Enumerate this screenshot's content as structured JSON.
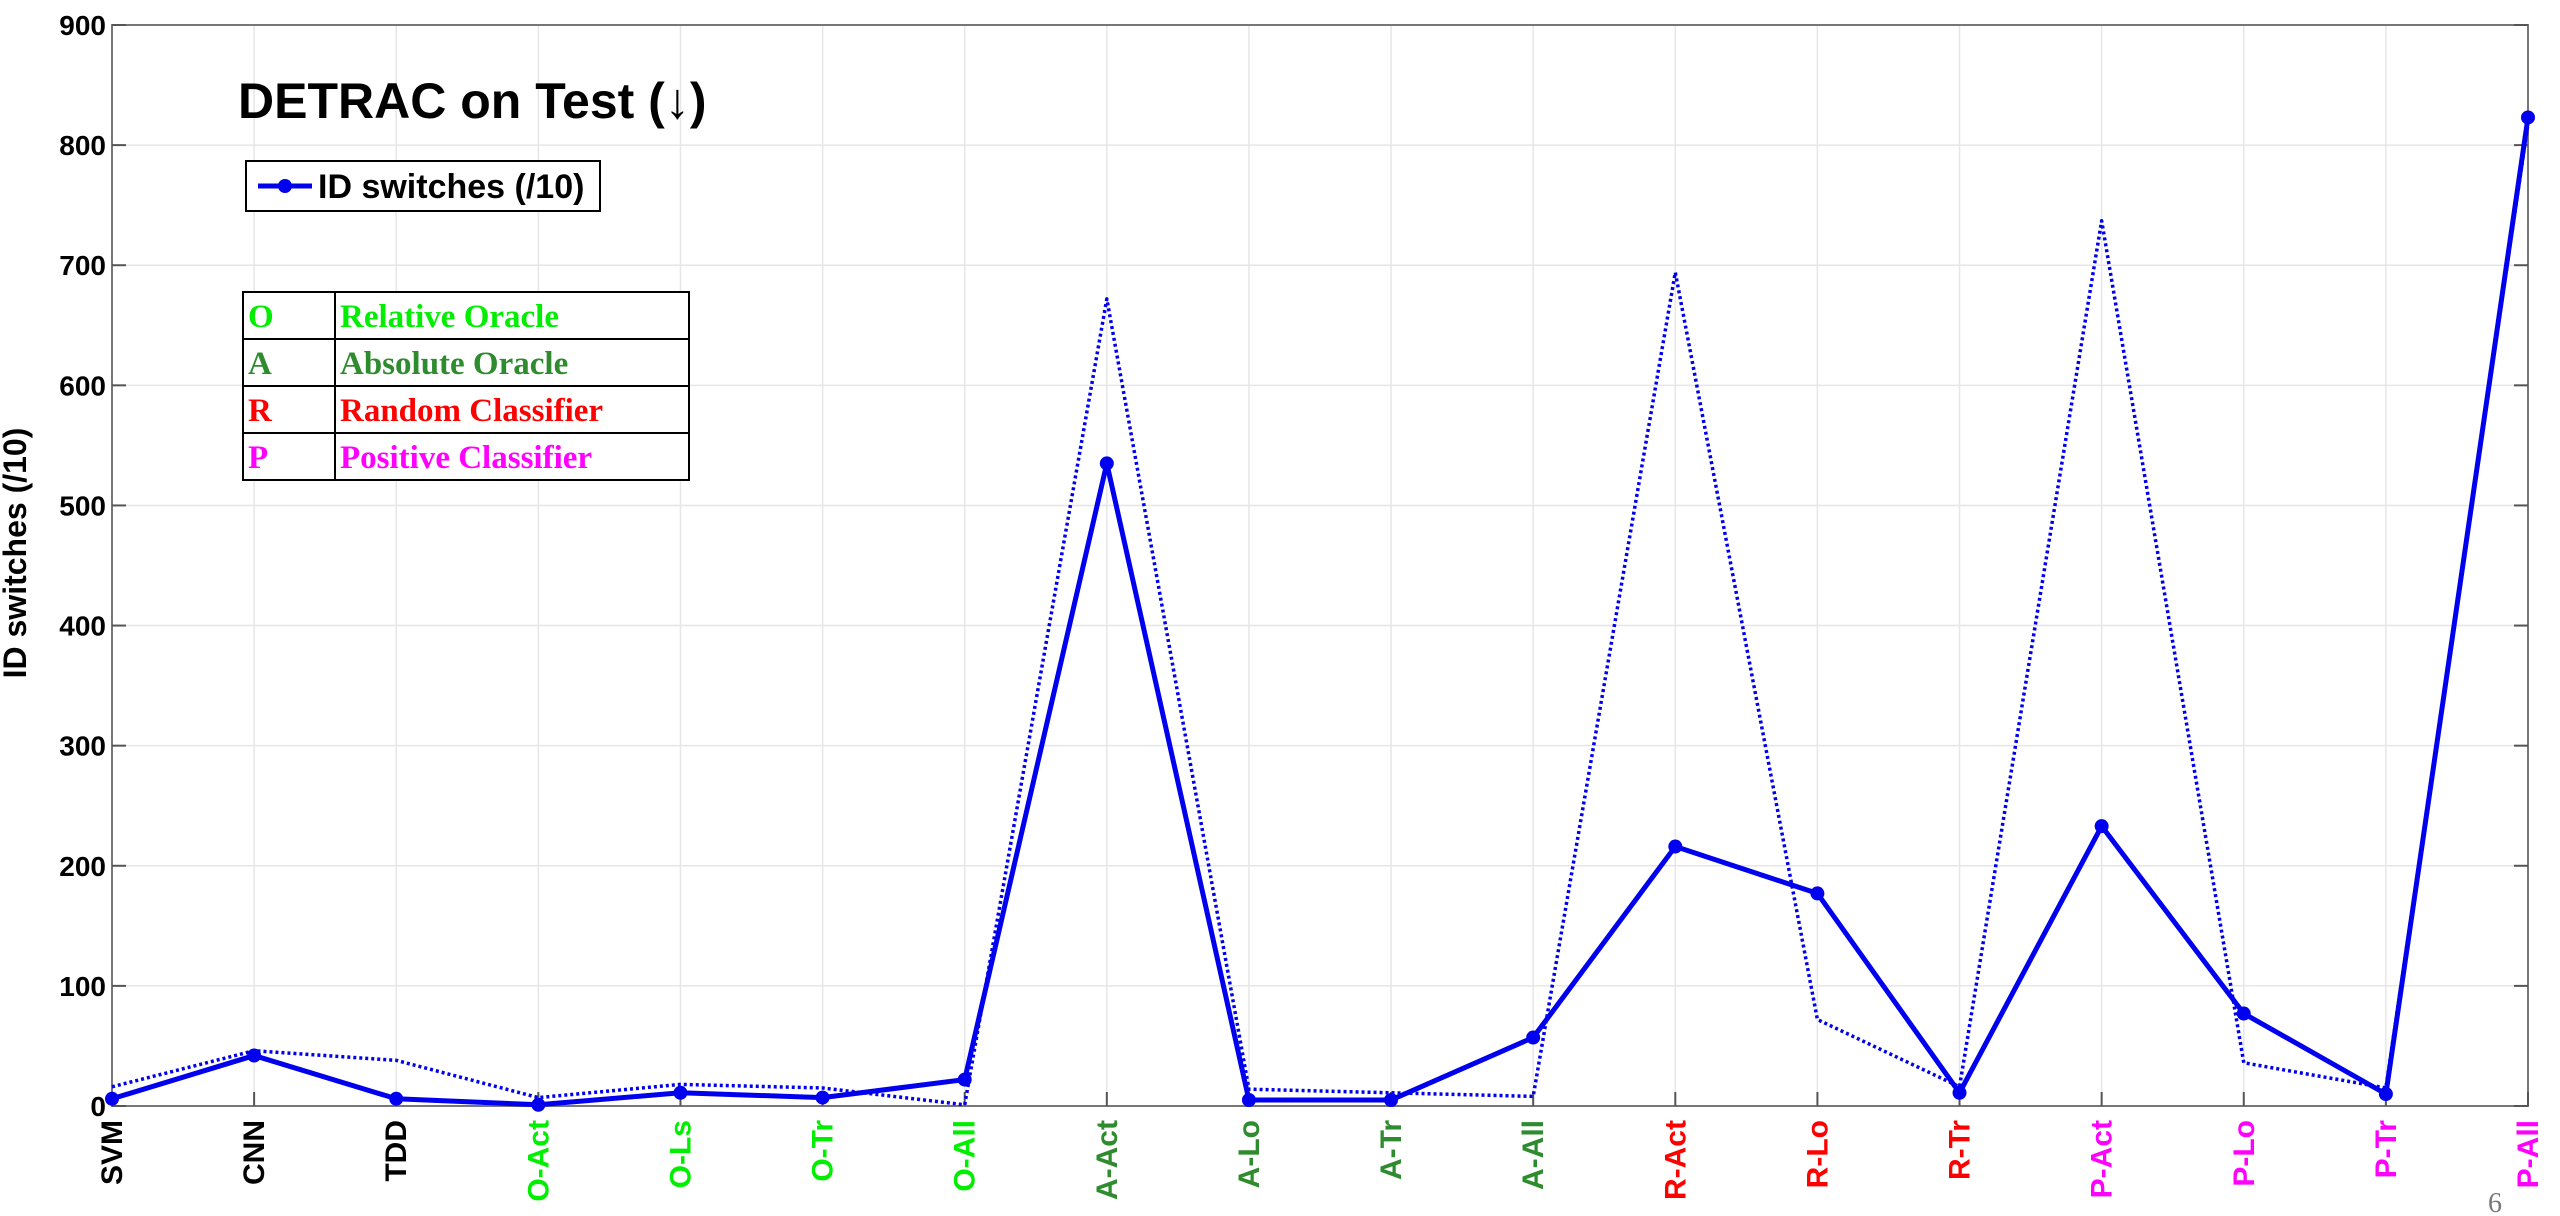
{
  "page_number": "6",
  "chart_data": {
    "type": "line",
    "title": "DETRAC  on Test    (↓)",
    "xlabel": "",
    "ylabel": "ID switches (/10)",
    "ylim": [
      0,
      900
    ],
    "yticks": [
      0,
      100,
      200,
      300,
      400,
      500,
      600,
      700,
      800,
      900
    ],
    "grid": true,
    "legend_position": "top-left",
    "categories": [
      "SVM",
      "CNN",
      "TDD",
      "O-Act",
      "O-Ls",
      "O-Tr",
      "O-All",
      "A-Act",
      "A-Lo",
      "A-Tr",
      "A-All",
      "R-Act",
      "R-Lo",
      "R-Tr",
      "P-Act",
      "P-Lo",
      "P-Tr",
      "P-All"
    ],
    "category_colors": [
      "#000000",
      "#000000",
      "#000000",
      "#00ee00",
      "#00ee00",
      "#00ee00",
      "#00ee00",
      "#2e8b2e",
      "#2e8b2e",
      "#2e8b2e",
      "#2e8b2e",
      "#ff0000",
      "#ff0000",
      "#ff0000",
      "#ff00ff",
      "#ff00ff",
      "#ff00ff",
      "#ff00ff"
    ],
    "series": [
      {
        "name": "ID switches (/10)",
        "style": "solid-with-markers",
        "color": "#0000ee",
        "values": [
          6,
          42,
          6,
          1,
          11,
          7,
          22,
          535,
          5,
          5,
          57,
          216,
          177,
          11,
          233,
          77,
          10,
          823
        ]
      },
      {
        "style": "dotted",
        "color": "#0000ee",
        "values": [
          16,
          46,
          38,
          7,
          18,
          15,
          1,
          672,
          14,
          11,
          8,
          694,
          72,
          16,
          737,
          36,
          15,
          818
        ]
      }
    ],
    "key_table": [
      {
        "letter": "O",
        "label": "Relative Oracle",
        "color": "#00ee00"
      },
      {
        "letter": "A",
        "label": "Absolute Oracle",
        "color": "#2e8b2e"
      },
      {
        "letter": "R",
        "label": "Random Classifier",
        "color": "#ff0000"
      },
      {
        "letter": "P",
        "label": "Positive Classifier",
        "color": "#ff00ff"
      }
    ]
  }
}
